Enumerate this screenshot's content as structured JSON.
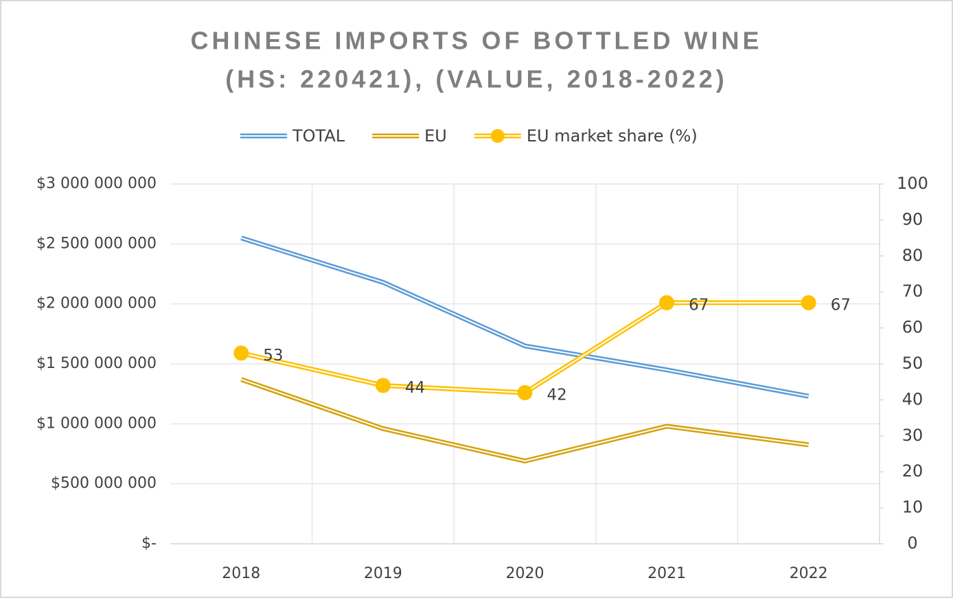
{
  "chart_data": {
    "type": "line",
    "title": [
      "CHINESE IMPORTS OF BOTTLED WINE",
      "(HS: 220421), (VALUE, 2018-2022)"
    ],
    "categories": [
      "2018",
      "2019",
      "2020",
      "2021",
      "2022"
    ],
    "series": [
      {
        "name": "TOTAL",
        "color": "#5b9bd5",
        "values": [
          2550000000,
          2180000000,
          1650000000,
          1450000000,
          1230000000
        ]
      },
      {
        "name": "EU",
        "color": "#d4a20c",
        "values": [
          1370000000,
          960000000,
          690000000,
          980000000,
          825000000
        ]
      },
      {
        "name": "EU market share (%)",
        "color": "#ffc000",
        "axis": "y2",
        "markers": true,
        "data_labels": true,
        "values": [
          53,
          44,
          42,
          67,
          67
        ]
      }
    ],
    "ylim": [
      0,
      3000000000
    ],
    "yticks": [
      {
        "value": 0,
        "label": "$-"
      },
      {
        "value": 500000000,
        "label": "$500 000 000"
      },
      {
        "value": 1000000000,
        "label": "$1 000 000 000"
      },
      {
        "value": 1500000000,
        "label": "$1 500 000 000"
      },
      {
        "value": 2000000000,
        "label": "$2 000 000 000"
      },
      {
        "value": 2500000000,
        "label": "$2 500 000 000"
      },
      {
        "value": 3000000000,
        "label": "$3 000 000 000"
      }
    ],
    "y2lim": [
      0,
      100
    ],
    "y2ticks": [
      0,
      10,
      20,
      30,
      40,
      50,
      60,
      70,
      80,
      90,
      100
    ],
    "grid": true,
    "legend": "top"
  }
}
